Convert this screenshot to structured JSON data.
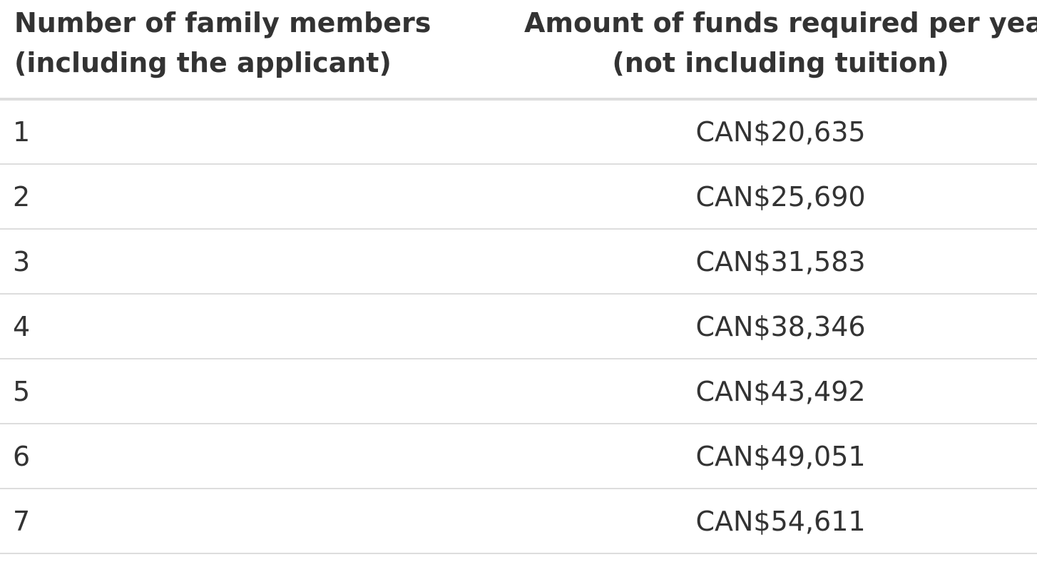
{
  "table": {
    "headers": {
      "members": [
        "Number of family members",
        "(including the applicant)"
      ],
      "amount": [
        "Amount of funds required per year",
        "(not including tuition)"
      ]
    },
    "rows": [
      {
        "members": "1",
        "amount": "CAN$20,635"
      },
      {
        "members": "2",
        "amount": "CAN$25,690"
      },
      {
        "members": "3",
        "amount": "CAN$31,583"
      },
      {
        "members": "4",
        "amount": "CAN$38,346"
      },
      {
        "members": "5",
        "amount": "CAN$43,492"
      },
      {
        "members": "6",
        "amount": "CAN$49,051"
      },
      {
        "members": "7",
        "amount": "CAN$54,611"
      }
    ]
  },
  "colors": {
    "text": "#333333",
    "border": "#dddddd",
    "background": "#ffffff"
  }
}
